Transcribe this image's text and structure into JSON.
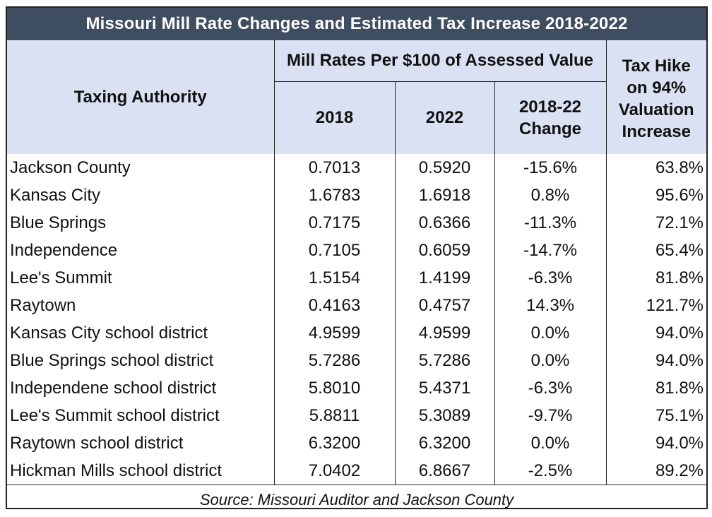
{
  "chart_data": {
    "type": "table",
    "title": "Missouri Mill Rate Changes and Estimated Tax Increase   2018-2022",
    "group_header": "Mill Rates Per $100 of Assessed Value",
    "columns": [
      "Taxing Authority",
      "2018",
      "2022",
      "2018-22 Change",
      "Tax Hike on 94% Valuation Increase"
    ],
    "header_lines": {
      "change": [
        "2018-22",
        "Change"
      ],
      "tax_hike": [
        "Tax Hike",
        "on 94%",
        "Valuation",
        "Increase"
      ]
    },
    "rows": [
      {
        "authority": "Jackson County",
        "rate_2018": "0.7013",
        "rate_2022": "0.5920",
        "change": "-15.6%",
        "tax_hike": "63.8%"
      },
      {
        "authority": "Kansas City",
        "rate_2018": "1.6783",
        "rate_2022": "1.6918",
        "change": "0.8%",
        "tax_hike": "95.6%"
      },
      {
        "authority": "Blue Springs",
        "rate_2018": "0.7175",
        "rate_2022": "0.6366",
        "change": "-11.3%",
        "tax_hike": "72.1%"
      },
      {
        "authority": "Independence",
        "rate_2018": "0.7105",
        "rate_2022": "0.6059",
        "change": "-14.7%",
        "tax_hike": "65.4%"
      },
      {
        "authority": "Lee's Summit",
        "rate_2018": "1.5154",
        "rate_2022": "1.4199",
        "change": "-6.3%",
        "tax_hike": "81.8%"
      },
      {
        "authority": "Raytown",
        "rate_2018": "0.4163",
        "rate_2022": "0.4757",
        "change": "14.3%",
        "tax_hike": "121.7%"
      },
      {
        "authority": "Kansas City school district",
        "rate_2018": "4.9599",
        "rate_2022": "4.9599",
        "change": "0.0%",
        "tax_hike": "94.0%"
      },
      {
        "authority": "Blue Springs school district",
        "rate_2018": "5.7286",
        "rate_2022": "5.7286",
        "change": "0.0%",
        "tax_hike": "94.0%"
      },
      {
        "authority": "Independene school district",
        "rate_2018": "5.8010",
        "rate_2022": "5.4371",
        "change": "-6.3%",
        "tax_hike": "81.8%"
      },
      {
        "authority": "Lee's Summit school district",
        "rate_2018": "5.8811",
        "rate_2022": "5.3089",
        "change": "-9.7%",
        "tax_hike": "75.1%"
      },
      {
        "authority": "Raytown school district",
        "rate_2018": "6.3200",
        "rate_2022": "6.3200",
        "change": "0.0%",
        "tax_hike": "94.0%"
      },
      {
        "authority": "Hickman Mills school district",
        "rate_2018": "7.0402",
        "rate_2022": "6.8667",
        "change": "-2.5%",
        "tax_hike": "89.2%"
      }
    ],
    "source": "Source:  Missouri Auditor and Jackson County",
    "colors": {
      "title_bg": "#3f4d61",
      "title_text": "#ffffff",
      "header_bg": "#d9e1f2"
    }
  }
}
